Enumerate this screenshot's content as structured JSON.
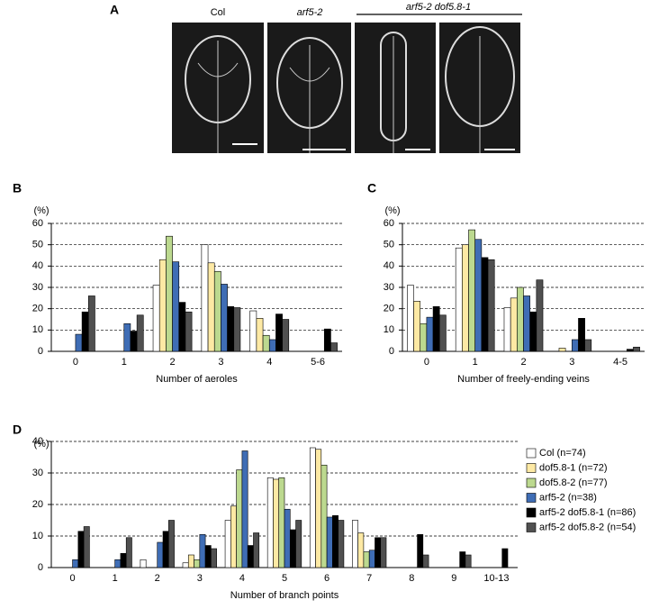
{
  "panel_a": {
    "label": "A",
    "columns": [
      "Col",
      "arf5-2",
      "arf5-2 dof5.8-1"
    ]
  },
  "chart_data": [
    {
      "type": "bar",
      "panel_label": "B",
      "y_unit": "(%)",
      "x_label": "Number of aeroles",
      "categories": [
        "0",
        "1",
        "2",
        "3",
        "4",
        "5-6"
      ],
      "ylim": [
        0,
        60
      ],
      "yticks": [
        0,
        10,
        20,
        30,
        40,
        50,
        60
      ],
      "grid": true,
      "series": [
        {
          "color": "#ffffff",
          "values": [
            0,
            0,
            31,
            50,
            19,
            0
          ]
        },
        {
          "color": "#fde9a4",
          "values": [
            0,
            0,
            43,
            41.5,
            15.5,
            0
          ]
        },
        {
          "color": "#bcd98f",
          "values": [
            0,
            0,
            54,
            37.5,
            7.5,
            0
          ]
        },
        {
          "color": "#3f6db5",
          "values": [
            8,
            13,
            42,
            31.5,
            5.5,
            0
          ]
        },
        {
          "color": "#000000",
          "values": [
            18.5,
            9.5,
            23,
            21,
            17.5,
            10.5
          ]
        },
        {
          "color": "#505050",
          "values": [
            26,
            17,
            18.5,
            20.5,
            15,
            4
          ]
        }
      ]
    },
    {
      "type": "bar",
      "panel_label": "C",
      "y_unit": "(%)",
      "x_label": "Number of freely-ending veins",
      "categories": [
        "0",
        "1",
        "2",
        "3",
        "4-5"
      ],
      "ylim": [
        0,
        60
      ],
      "yticks": [
        0,
        10,
        20,
        30,
        40,
        50,
        60
      ],
      "grid": true,
      "series": [
        {
          "color": "#ffffff",
          "values": [
            31,
            48.5,
            20.5,
            0,
            0
          ]
        },
        {
          "color": "#fde9a4",
          "values": [
            23.5,
            50,
            25,
            1.5,
            0
          ]
        },
        {
          "color": "#bcd98f",
          "values": [
            13,
            57,
            30,
            0,
            0
          ]
        },
        {
          "color": "#3f6db5",
          "values": [
            16,
            52.5,
            26,
            5.5,
            0
          ]
        },
        {
          "color": "#000000",
          "values": [
            21,
            44,
            18.5,
            15.5,
            1
          ]
        },
        {
          "color": "#505050",
          "values": [
            17,
            43,
            33.5,
            5.5,
            2
          ]
        }
      ]
    },
    {
      "type": "bar",
      "panel_label": "D",
      "y_unit": "(%)",
      "x_label": "Number of branch points",
      "categories": [
        "0",
        "1",
        "2",
        "3",
        "4",
        "5",
        "6",
        "7",
        "8",
        "9",
        "10-13"
      ],
      "ylim": [
        0,
        40
      ],
      "yticks": [
        0,
        10,
        20,
        30,
        40
      ],
      "grid": true,
      "series": [
        {
          "name": "Col (n=74)",
          "color": "#ffffff",
          "values": [
            0,
            0,
            2.5,
            1.5,
            15,
            28.5,
            38,
            15,
            0,
            0,
            0
          ]
        },
        {
          "name": "dof5.8-1 (n=72)",
          "color": "#fde9a4",
          "values": [
            0,
            0,
            0,
            4,
            19.5,
            28,
            37.5,
            11,
            0,
            0,
            0
          ]
        },
        {
          "name": "dof5.8-2 (n=77)",
          "color": "#bcd98f",
          "values": [
            0,
            0,
            0,
            2.5,
            31,
            28.5,
            32.5,
            5,
            0,
            0,
            0
          ]
        },
        {
          "name": "arf5-2 (n=38)",
          "color": "#3f6db5",
          "values": [
            2.5,
            2.5,
            8,
            10.5,
            37,
            18.5,
            16,
            5.5,
            0,
            0,
            0
          ]
        },
        {
          "name": "arf5-2 dof5.8-1 (n=86)",
          "color": "#000000",
          "values": [
            11.5,
            4.5,
            11.5,
            7,
            7,
            12,
            16.5,
            9.5,
            10.5,
            5,
            6
          ]
        },
        {
          "name": "arf5-2 dof5.8-2 (n=54)",
          "color": "#505050",
          "values": [
            13,
            9.5,
            15,
            6,
            11,
            15,
            15,
            9.5,
            4,
            4,
            0
          ]
        }
      ]
    }
  ]
}
